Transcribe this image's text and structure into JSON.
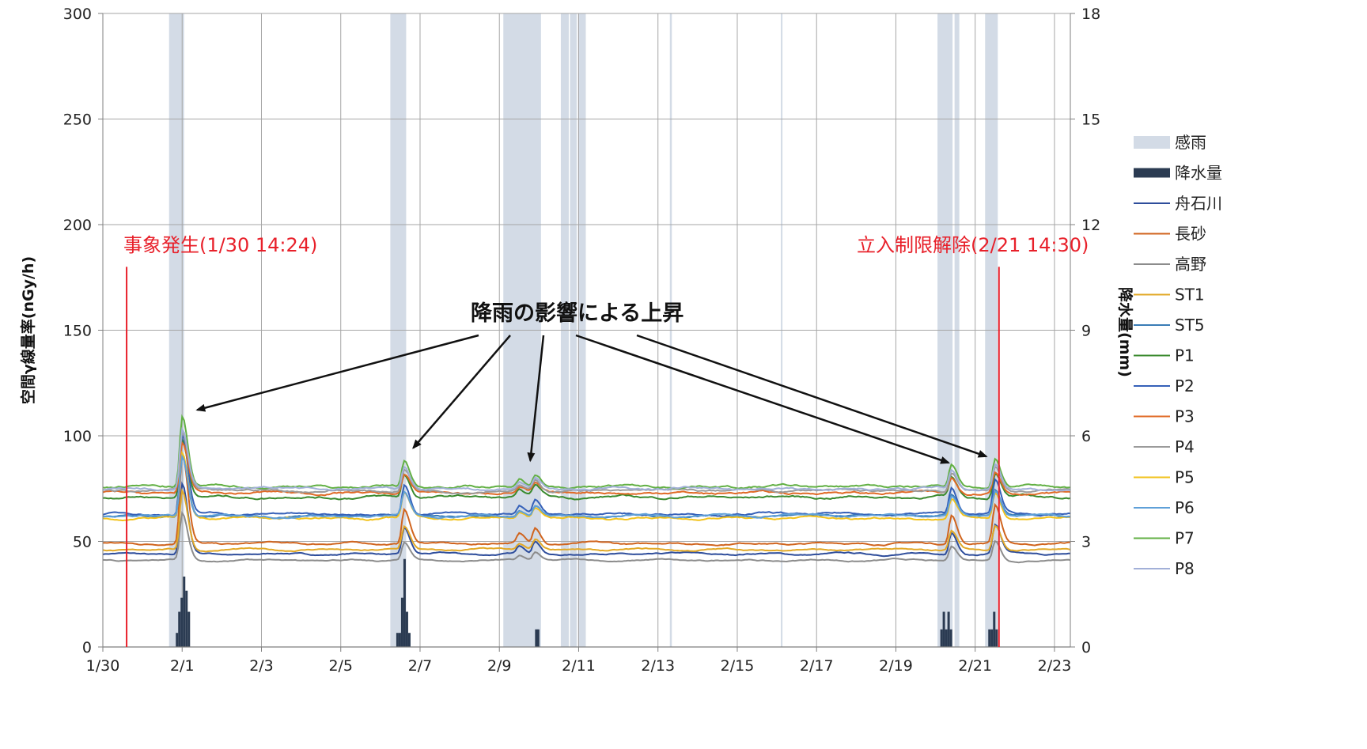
{
  "chart_data": {
    "type": "line",
    "xaxis": {
      "ticks": [
        "1/30",
        "2/1",
        "2/3",
        "2/5",
        "2/7",
        "2/9",
        "2/11",
        "2/13",
        "2/15",
        "2/17",
        "2/19",
        "2/21",
        "2/23"
      ],
      "range_days": [
        0,
        24.4
      ]
    },
    "yaxis_left": {
      "label": "空間γ線量率(nGy/h)",
      "range": [
        0,
        300
      ],
      "ticks": [
        0,
        50,
        100,
        150,
        200,
        250,
        300
      ]
    },
    "yaxis_right": {
      "label": "降水量(mm)",
      "range": [
        0,
        18
      ],
      "ticks": [
        0,
        3,
        6,
        9,
        12,
        15,
        18
      ]
    },
    "grid": true,
    "legend_position": "right",
    "rain_periods": [
      [
        1.67,
        2.05
      ],
      [
        7.25,
        7.65
      ],
      [
        10.1,
        11.05
      ],
      [
        11.55,
        11.75
      ],
      [
        11.78,
        11.95
      ],
      [
        11.98,
        12.18
      ],
      [
        14.3,
        14.35
      ],
      [
        17.1,
        17.14
      ],
      [
        21.05,
        21.43
      ],
      [
        21.48,
        21.6
      ],
      [
        22.25,
        22.57
      ]
    ],
    "precip_series": {
      "name": "降水量",
      "color": "#2b3b52",
      "bars": [
        {
          "day": 1.87,
          "mm": 0.4
        },
        {
          "day": 1.93,
          "mm": 1.0
        },
        {
          "day": 1.99,
          "mm": 1.4
        },
        {
          "day": 2.05,
          "mm": 2.0
        },
        {
          "day": 2.11,
          "mm": 1.6
        },
        {
          "day": 2.17,
          "mm": 1.0
        },
        {
          "day": 7.43,
          "mm": 0.4
        },
        {
          "day": 7.49,
          "mm": 0.4
        },
        {
          "day": 7.55,
          "mm": 1.4
        },
        {
          "day": 7.61,
          "mm": 2.5
        },
        {
          "day": 7.67,
          "mm": 1.0
        },
        {
          "day": 7.73,
          "mm": 0.4
        },
        {
          "day": 10.93,
          "mm": 0.5
        },
        {
          "day": 10.98,
          "mm": 0.5
        },
        {
          "day": 21.15,
          "mm": 0.5
        },
        {
          "day": 21.21,
          "mm": 1.0
        },
        {
          "day": 21.27,
          "mm": 0.5
        },
        {
          "day": 21.33,
          "mm": 1.0
        },
        {
          "day": 21.39,
          "mm": 0.5
        },
        {
          "day": 22.36,
          "mm": 0.5
        },
        {
          "day": 22.42,
          "mm": 0.5
        },
        {
          "day": 22.48,
          "mm": 1.0
        },
        {
          "day": 22.54,
          "mm": 0.5
        }
      ]
    },
    "spikes": [
      {
        "day": 2.0,
        "height": 1.0
      },
      {
        "day": 7.6,
        "height": 0.38
      },
      {
        "day": 10.5,
        "height": 0.1
      },
      {
        "day": 10.9,
        "height": 0.18
      },
      {
        "day": 21.4,
        "height": 0.32
      },
      {
        "day": 22.5,
        "height": 0.42
      }
    ],
    "series": [
      {
        "name": "舟石川",
        "color": "#2e4d9b",
        "base": 44,
        "spike": 33
      },
      {
        "name": "長砂",
        "color": "#d0641e",
        "base": 49,
        "spike": 43
      },
      {
        "name": "高野",
        "color": "#8c8c8c",
        "base": 41,
        "spike": 22
      },
      {
        "name": "ST1",
        "color": "#e2a927",
        "base": 46,
        "spike": 28
      },
      {
        "name": "ST5",
        "color": "#3a7cb6",
        "base": 62,
        "spike": 30
      },
      {
        "name": "P1",
        "color": "#3a8a2e",
        "base": 71,
        "spike": 28
      },
      {
        "name": "P2",
        "color": "#3560b8",
        "base": 63,
        "spike": 38
      },
      {
        "name": "P3",
        "color": "#e06a26",
        "base": 73,
        "spike": 23
      },
      {
        "name": "P4",
        "color": "#9b9b9b",
        "base": 74,
        "spike": 27
      },
      {
        "name": "P5",
        "color": "#f2c21b",
        "base": 61,
        "spike": 30
      },
      {
        "name": "P6",
        "color": "#5fa0d8",
        "base": 62,
        "spike": 28
      },
      {
        "name": "P7",
        "color": "#62b044",
        "base": 76,
        "spike": 33
      },
      {
        "name": "P8",
        "color": "#a2b0d8",
        "base": 75,
        "spike": 28
      }
    ],
    "events": [
      {
        "label": "事象発生(1/30 14:24)",
        "day": 0.6
      },
      {
        "label": "立入制限解除(2/21 14:30)",
        "day": 22.6
      }
    ],
    "annotation": {
      "label": "降雨の影響による上昇",
      "targets": [
        {
          "day": 2.38,
          "value": 110
        },
        {
          "day": 7.83,
          "value": 92
        },
        {
          "day": 10.78,
          "value": 86
        },
        {
          "day": 21.33,
          "value": 85
        },
        {
          "day": 22.28,
          "value": 88
        }
      ]
    },
    "legend": [
      {
        "label": "感雨",
        "kind": "band",
        "color": "#d3dbe6"
      },
      {
        "label": "降水量",
        "kind": "bar",
        "color": "#2b3b52"
      },
      {
        "label": "舟石川",
        "kind": "line",
        "color": "#2e4d9b"
      },
      {
        "label": "長砂",
        "kind": "line",
        "color": "#d0641e"
      },
      {
        "label": "高野",
        "kind": "line",
        "color": "#8c8c8c"
      },
      {
        "label": "ST1",
        "kind": "line",
        "color": "#e2a927"
      },
      {
        "label": "ST5",
        "kind": "line",
        "color": "#3a7cb6"
      },
      {
        "label": "P1",
        "kind": "line",
        "color": "#3a8a2e"
      },
      {
        "label": "P2",
        "kind": "line",
        "color": "#3560b8"
      },
      {
        "label": "P3",
        "kind": "line",
        "color": "#e06a26"
      },
      {
        "label": "P4",
        "kind": "line",
        "color": "#9b9b9b"
      },
      {
        "label": "P5",
        "kind": "line",
        "color": "#f2c21b"
      },
      {
        "label": "P6",
        "kind": "line",
        "color": "#5fa0d8"
      },
      {
        "label": "P7",
        "kind": "line",
        "color": "#62b044"
      },
      {
        "label": "P8",
        "kind": "line",
        "color": "#a2b0d8"
      }
    ]
  }
}
